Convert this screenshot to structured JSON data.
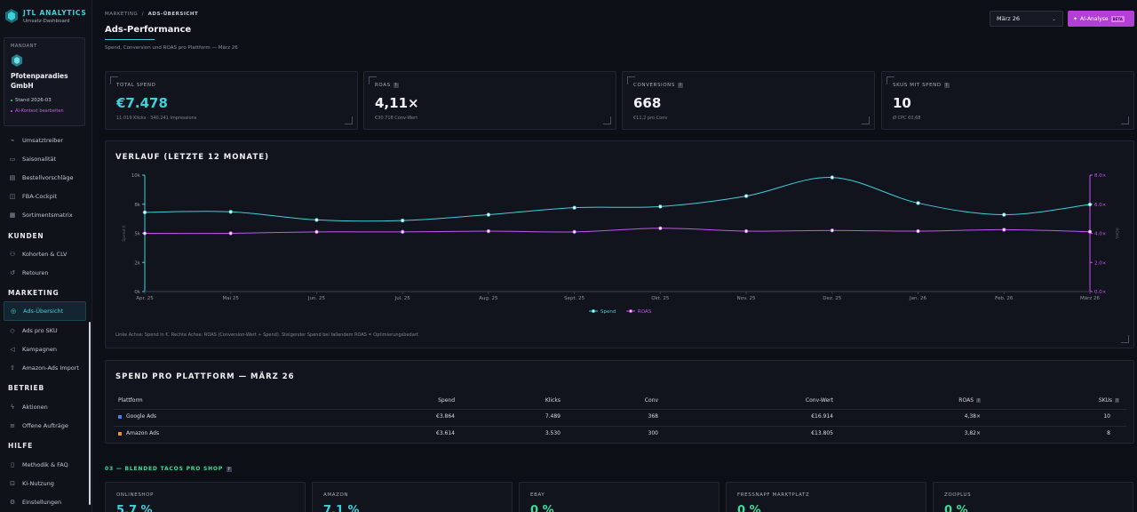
{
  "brand": {
    "title": "JTL ANALYTICS",
    "subtitle": "Umsatz-Dashboard"
  },
  "mandant": {
    "label": "MANDANT",
    "name": "Pfotenparadies GmbH",
    "stand": "Stand 2026-03",
    "ai_context": "AI-Kontext bearbeiten"
  },
  "nav": {
    "top_items": [
      {
        "label": "Umsatztreiber",
        "icon": "trend-icon"
      },
      {
        "label": "Saisonalität",
        "icon": "calendar-icon"
      },
      {
        "label": "Bestellvorschläge",
        "icon": "clipboard-icon"
      },
      {
        "label": "FBA-Cockpit",
        "icon": "box-icon"
      },
      {
        "label": "Sortimentsmatrix",
        "icon": "grid-icon"
      }
    ],
    "sections": [
      {
        "title": "KUNDEN",
        "items": [
          {
            "label": "Kohorten & CLV"
          },
          {
            "label": "Retouren"
          }
        ]
      },
      {
        "title": "MARKETING",
        "items": [
          {
            "label": "Ads-Übersicht",
            "active": true
          },
          {
            "label": "Ads pro SKU"
          },
          {
            "label": "Kampagnen"
          },
          {
            "label": "Amazon-Ads Import"
          }
        ]
      },
      {
        "title": "BETRIEB",
        "items": [
          {
            "label": "Aktionen"
          },
          {
            "label": "Offene Aufträge"
          }
        ]
      },
      {
        "title": "HILFE",
        "items": [
          {
            "label": "Methodik & FAQ"
          },
          {
            "label": "KI-Nutzung"
          },
          {
            "label": "Einstellungen"
          }
        ]
      }
    ]
  },
  "header": {
    "crumb_parent": "MARKETING",
    "crumb_sep": "/",
    "crumb_current": "ADS-ÜBERSICHT",
    "title": "Ads-Performance",
    "subtitle": "Spend, Conversion und ROAS pro Plattform — März 26",
    "month": "März 26",
    "ai_button": "AI-Analyse",
    "ai_badge": "BETA"
  },
  "kpis": [
    {
      "label": "TOTAL SPEND",
      "value": "€7.478",
      "sub": "11.019 Klicks · 340.241 Impressions",
      "info": false
    },
    {
      "label": "ROAS",
      "value": "4,11×",
      "sub": "€30.718 Conv-Wert",
      "info": true
    },
    {
      "label": "CONVERSIONS",
      "value": "668",
      "sub": "€11,2 pro Conv",
      "info": true
    },
    {
      "label": "SKUS MIT SPEND",
      "value": "10",
      "sub": "Ø CPC €0,68",
      "info": true
    }
  ],
  "chart_panel": {
    "title": "VERLAUF (LETZTE 12 MONATE)",
    "note": "Linke Achse: Spend in €. Rechte Achse: ROAS (Conversion-Wert ÷ Spend). Steigender Spend bei fallendem ROAS = Optimierungsbedarf."
  },
  "chart_data": {
    "type": "line",
    "categories": [
      "Apr. 25",
      "Mai 25",
      "Jun. 25",
      "Jul. 25",
      "Aug. 25",
      "Sept. 25",
      "Okt. 25",
      "Nov. 25",
      "Dez. 25",
      "Jan. 26",
      "Feb. 26",
      "März 26"
    ],
    "left_axis": {
      "label": "Spend €",
      "ticks": [
        "0k",
        "2k",
        "5k",
        "8k",
        "10k"
      ],
      "range": [
        0,
        10000
      ]
    },
    "right_axis": {
      "label": "ROAS",
      "ticks": [
        "0.0×",
        "2.0×",
        "4.0×",
        "6.0×",
        "8.0×"
      ],
      "range": [
        0,
        8
      ]
    },
    "series": [
      {
        "name": "Spend",
        "axis": "left",
        "color": "#3fd0dc",
        "values": [
          6800,
          6850,
          6150,
          6100,
          6600,
          7200,
          7300,
          8200,
          9800,
          7600,
          6600,
          7478
        ]
      },
      {
        "name": "ROAS",
        "axis": "right",
        "color": "#c454f0",
        "values": [
          4.0,
          4.0,
          4.1,
          4.1,
          4.15,
          4.1,
          4.35,
          4.15,
          4.2,
          4.15,
          4.25,
          4.11
        ]
      }
    ],
    "legend_position": "bottom-center",
    "grid": false
  },
  "platform_panel": {
    "title": "SPEND PRO PLATTFORM — MÄRZ 26",
    "columns": [
      "Plattform",
      "Spend",
      "Klicks",
      "Conv",
      "Conv-Wert",
      "ROAS",
      "SKUs"
    ],
    "rows": [
      {
        "platform": "Google Ads",
        "color": "#4a7cf0",
        "spend": "€3.864",
        "clicks": "7.489",
        "conv": "368",
        "conv_value": "€16.914",
        "roas": "4,38×",
        "skus": "10"
      },
      {
        "platform": "Amazon Ads",
        "color": "#f0902a",
        "spend": "€3.614",
        "clicks": "3.530",
        "conv": "300",
        "conv_value": "€13.805",
        "roas": "3,82×",
        "skus": "8"
      }
    ]
  },
  "tacos": {
    "title": "03 — BLENDED TACOS PRO SHOP",
    "shops": [
      {
        "label": "ONLINESHOP",
        "value": "5,7 %",
        "color": "#3fd0dc"
      },
      {
        "label": "AMAZON",
        "value": "7,1 %",
        "color": "#3fd0dc"
      },
      {
        "label": "EBAY",
        "value": "0 %",
        "color": "#3ddc9a"
      },
      {
        "label": "FRESSNAPF MARKTPLATZ",
        "value": "0 %",
        "color": "#3ddc9a"
      },
      {
        "label": "ZOOPLUS",
        "value": "0 %",
        "color": "#3ddc9a"
      }
    ]
  }
}
